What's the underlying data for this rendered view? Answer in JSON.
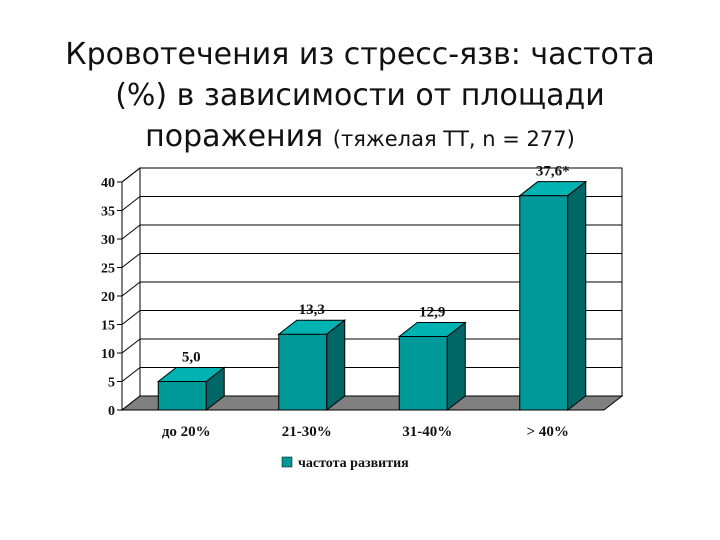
{
  "slide": {
    "title_line1": "Кровотечения из стресс-язв: частота",
    "title_line2": "(%) в зависимости от площади",
    "title_line3_main": "поражения",
    "title_line3_sub": "(тяжелая ТТ, n = 277)"
  },
  "chart_data": {
    "type": "bar",
    "categories": [
      "до 20%",
      "21-30%",
      "31-40%",
      "> 40%"
    ],
    "series": [
      {
        "name": "частота развития",
        "values": [
          5.0,
          13.3,
          12.9,
          37.6
        ]
      }
    ],
    "value_labels": [
      "5,0",
      "13,3",
      "12,9",
      "37,6*"
    ],
    "ylim": [
      0,
      40
    ],
    "yticks": [
      "0",
      "5",
      "10",
      "15",
      "20",
      "25",
      "30",
      "35",
      "40"
    ],
    "grid": true,
    "legend_position": "bottom",
    "colors": {
      "bar_front": "#009999",
      "bar_top": "#00b3b3",
      "bar_side": "#006666",
      "floor": "#808080"
    }
  }
}
